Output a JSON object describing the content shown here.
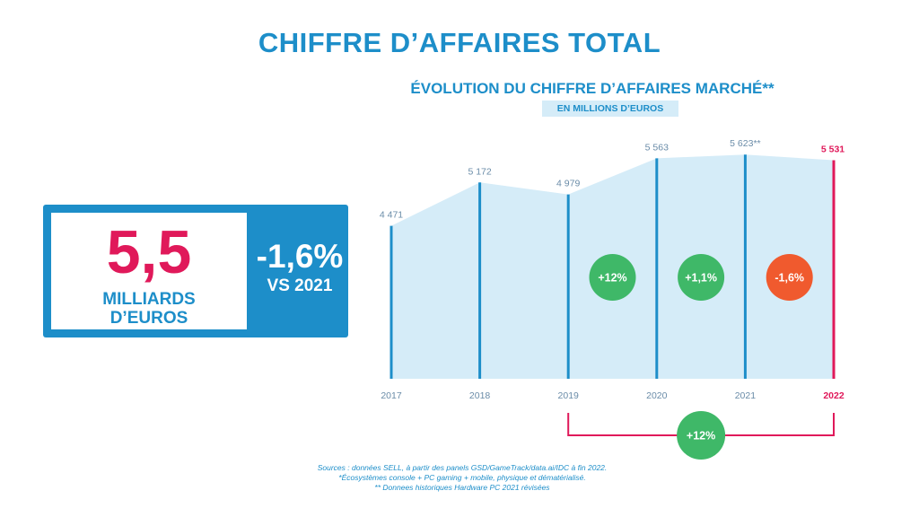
{
  "page": {
    "title": "CHIFFRE D’AFFAIRES TOTAL",
    "colors": {
      "blue": "#1d8ec9",
      "light_blue": "#d5ecf8",
      "pink": "#e0195a",
      "green": "#3fb868",
      "red": "#f05a2e"
    }
  },
  "kpi": {
    "value": "5,5",
    "unit_line1": "MILLIARDS",
    "unit_line2": "D’EUROS",
    "change": "-1,6%",
    "vs": "VS 2021"
  },
  "chart_data": {
    "type": "area",
    "title": "ÉVOLUTION DU CHIFFRE D’AFFAIRES MARCHÉ**",
    "subtitle": "EN MILLIONS D’EUROS",
    "categories": [
      "2017",
      "2018",
      "2019",
      "2020",
      "2021",
      "2022"
    ],
    "values": [
      4471,
      5172,
      4979,
      5563,
      5623,
      5531
    ],
    "data_labels": [
      "4 471",
      "5 172",
      "4 979",
      "5 563",
      "5 623**",
      "5 531"
    ],
    "highlight_category": "2022",
    "ylim": [
      0,
      5800
    ],
    "growth_badges": [
      {
        "label": "+12%",
        "from": "2019",
        "to": "2020",
        "color": "#3fb868"
      },
      {
        "label": "+1,1%",
        "from": "2020",
        "to": "2021",
        "color": "#3fb868"
      },
      {
        "label": "-1,6%",
        "from": "2021",
        "to": "2022",
        "color": "#f05a2e"
      }
    ],
    "range_badge": {
      "label": "+12%",
      "from": "2019",
      "to": "2022",
      "color": "#3fb868"
    }
  },
  "footnotes": [
    "Sources : données SELL, à partir des panels GSD/GameTrack/data.ai/IDC à fin 2022.",
    "*Écosystèmes console + PC gaming + mobile, physique et dématérialisé.",
    "** Donnees historiques Hardware PC 2021 révisées"
  ]
}
